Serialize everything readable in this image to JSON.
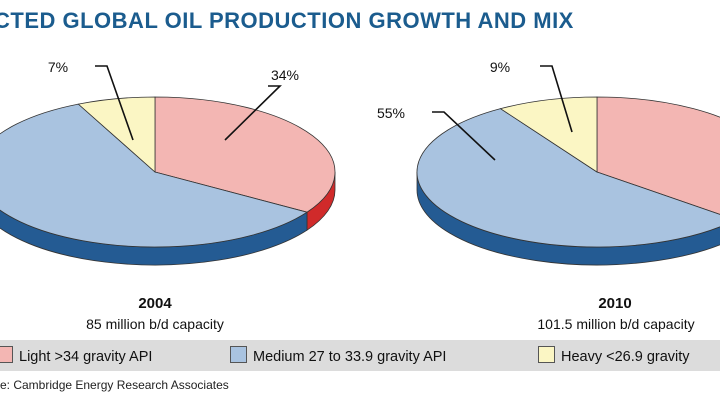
{
  "title": "CTED GLOBAL OIL PRODUCTION GROWTH AND MIX",
  "colors": {
    "light": "#f3b6b3",
    "medium": "#a9c3e0",
    "heavy": "#fbf6c4",
    "title": "#1b5c8e"
  },
  "chart_data": [
    {
      "type": "pie",
      "title": "2004",
      "subtitle": "85 million b/d capacity",
      "slices": [
        {
          "label": "Light >34 gravity API",
          "value": 34,
          "text": "34%"
        },
        {
          "label": "Medium 27 to 33.9 gravity API",
          "value": 59,
          "text": ""
        },
        {
          "label": "Heavy <26.9 gravity API",
          "value": 7,
          "text": "7%"
        }
      ]
    },
    {
      "type": "pie",
      "title": "2010",
      "subtitle": "101.5 million b/d capacity",
      "slices": [
        {
          "label": "Light >34 gravity API",
          "value": 36,
          "text": ""
        },
        {
          "label": "Medium 27 to 33.9 gravity API",
          "value": 55,
          "text": "55%"
        },
        {
          "label": "Heavy <26.9 gravity API",
          "value": 9,
          "text": "9%"
        }
      ]
    }
  ],
  "legend": [
    {
      "label": "Light >34 gravity API"
    },
    {
      "label": "Medium 27 to 33.9 gravity API"
    },
    {
      "label": "Heavy <26.9 gravity"
    }
  ],
  "source": "e: Cambridge Energy Research Associates"
}
